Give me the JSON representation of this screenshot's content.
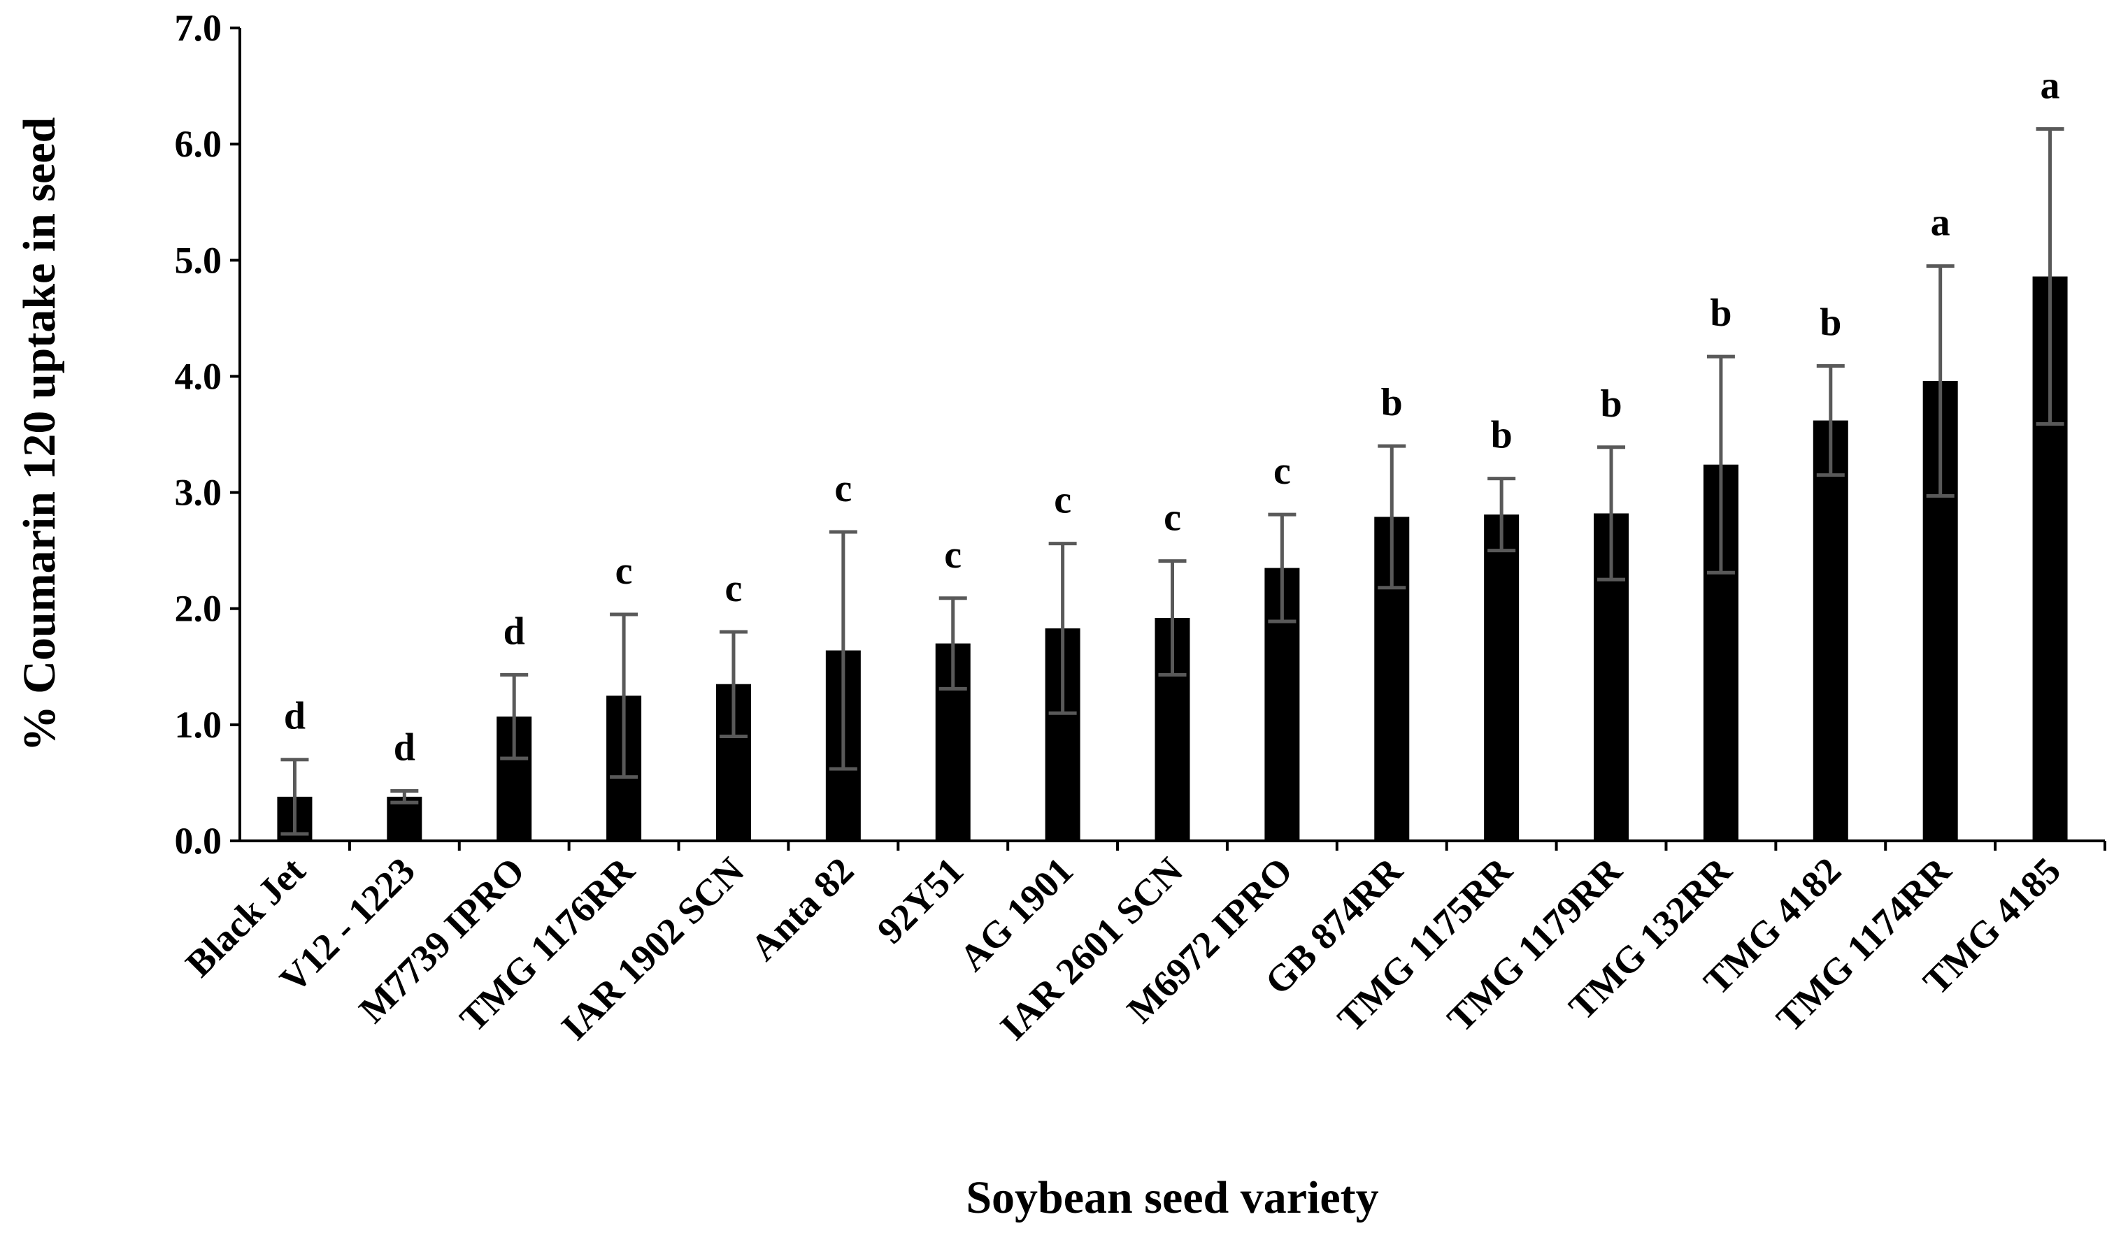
{
  "chart_data": {
    "type": "bar",
    "title": "",
    "xlabel": "Soybean seed variety",
    "ylabel": "% Coumarin 120 uptake in seed",
    "ylim": [
      0,
      7.0
    ],
    "yticks": [
      "0.0",
      "1.0",
      "2.0",
      "3.0",
      "4.0",
      "5.0",
      "6.0",
      "7.0"
    ],
    "grid": false,
    "legend": "none",
    "bar_color": "#000000",
    "error_bar_color": "#595959",
    "categories": [
      "Black Jet",
      "V12 - 1223",
      "M7739 IPRO",
      "TMG 1176RR",
      "IAR 1902 SCN",
      "Anta 82",
      "92Y51",
      "AG 1901",
      "IAR 2601 SCN",
      "M6972 IPRO",
      "GB 874RR",
      "TMG 1175RR",
      "TMG 1179RR",
      "TMG 132RR",
      "TMG 4182",
      "TMG 1174RR",
      "TMG 4185"
    ],
    "values": [
      0.38,
      0.38,
      1.07,
      1.25,
      1.35,
      1.64,
      1.7,
      1.83,
      1.92,
      2.35,
      2.79,
      2.81,
      2.82,
      3.24,
      3.62,
      3.96,
      4.86
    ],
    "errors": [
      0.32,
      0.05,
      0.36,
      0.7,
      0.45,
      1.02,
      0.39,
      0.73,
      0.49,
      0.46,
      0.61,
      0.31,
      0.57,
      0.93,
      0.47,
      0.99,
      1.27
    ],
    "significance_labels": [
      "d",
      "d",
      "d",
      "c",
      "c",
      "c",
      "c",
      "c",
      "c",
      "c",
      "b",
      "b",
      "b",
      "b",
      "b",
      "a",
      "a"
    ]
  }
}
